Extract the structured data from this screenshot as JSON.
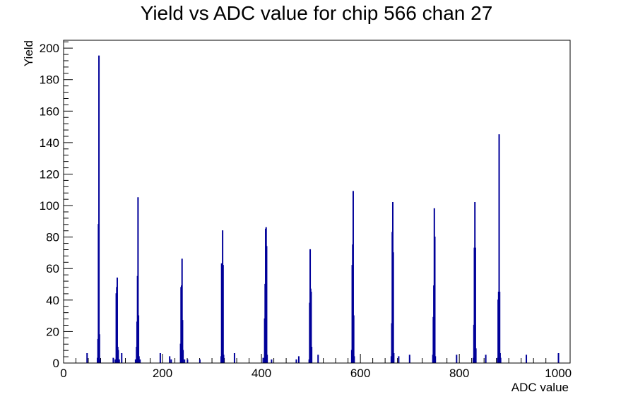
{
  "chart_data": {
    "type": "bar",
    "title": "Yield vs ADC value for chip 566 chan 27",
    "xlabel": "ADC value",
    "ylabel": "Yield",
    "xlim": [
      0,
      1024
    ],
    "ylim": [
      0,
      205
    ],
    "x_ticks": [
      0,
      200,
      400,
      600,
      800,
      1000
    ],
    "y_ticks": [
      0,
      20,
      40,
      60,
      80,
      100,
      120,
      140,
      160,
      180,
      200
    ],
    "grid": false,
    "line_color": "#000099",
    "series": [
      {
        "bin_width": 1,
        "points": [
          [
            47,
            6
          ],
          [
            68,
            3
          ],
          [
            69,
            15
          ],
          [
            70,
            88
          ],
          [
            71,
            195
          ],
          [
            72,
            18
          ],
          [
            73,
            2
          ],
          [
            100,
            3
          ],
          [
            104,
            2
          ],
          [
            106,
            44
          ],
          [
            107,
            48
          ],
          [
            108,
            54
          ],
          [
            109,
            10
          ],
          [
            110,
            8
          ],
          [
            112,
            2
          ],
          [
            117,
            6
          ],
          [
            145,
            2
          ],
          [
            147,
            10
          ],
          [
            148,
            26
          ],
          [
            149,
            55
          ],
          [
            150,
            105
          ],
          [
            151,
            30
          ],
          [
            152,
            4
          ],
          [
            154,
            2
          ],
          [
            195,
            6
          ],
          [
            214,
            4
          ],
          [
            217,
            2
          ],
          [
            236,
            12
          ],
          [
            237,
            48
          ],
          [
            238,
            49
          ],
          [
            239,
            66
          ],
          [
            240,
            27
          ],
          [
            241,
            8
          ],
          [
            244,
            2
          ],
          [
            250,
            2
          ],
          [
            275,
            2
          ],
          [
            318,
            4
          ],
          [
            319,
            63
          ],
          [
            320,
            63
          ],
          [
            321,
            84
          ],
          [
            322,
            62
          ],
          [
            323,
            5
          ],
          [
            345,
            6
          ],
          [
            403,
            3
          ],
          [
            406,
            28
          ],
          [
            407,
            50
          ],
          [
            408,
            85
          ],
          [
            409,
            86
          ],
          [
            410,
            74
          ],
          [
            411,
            5
          ],
          [
            420,
            2
          ],
          [
            470,
            2
          ],
          [
            475,
            4
          ],
          [
            496,
            2
          ],
          [
            497,
            38
          ],
          [
            498,
            72
          ],
          [
            499,
            47
          ],
          [
            500,
            45
          ],
          [
            501,
            10
          ],
          [
            514,
            5
          ],
          [
            582,
            8
          ],
          [
            583,
            62
          ],
          [
            584,
            75
          ],
          [
            585,
            109
          ],
          [
            586,
            30
          ],
          [
            587,
            4
          ],
          [
            662,
            4
          ],
          [
            663,
            25
          ],
          [
            664,
            83
          ],
          [
            665,
            102
          ],
          [
            666,
            70
          ],
          [
            667,
            6
          ],
          [
            677,
            4
          ],
          [
            699,
            5
          ],
          [
            746,
            5
          ],
          [
            747,
            29
          ],
          [
            748,
            49
          ],
          [
            749,
            98
          ],
          [
            750,
            80
          ],
          [
            751,
            4
          ],
          [
            794,
            5
          ],
          [
            828,
            3
          ],
          [
            829,
            24
          ],
          [
            830,
            73
          ],
          [
            831,
            102
          ],
          [
            832,
            73
          ],
          [
            833,
            9
          ],
          [
            853,
            5
          ],
          [
            877,
            3
          ],
          [
            878,
            40
          ],
          [
            879,
            45
          ],
          [
            880,
            145
          ],
          [
            881,
            45
          ],
          [
            882,
            6
          ],
          [
            883,
            3
          ],
          [
            935,
            5
          ],
          [
            1000,
            6
          ]
        ]
      }
    ]
  }
}
